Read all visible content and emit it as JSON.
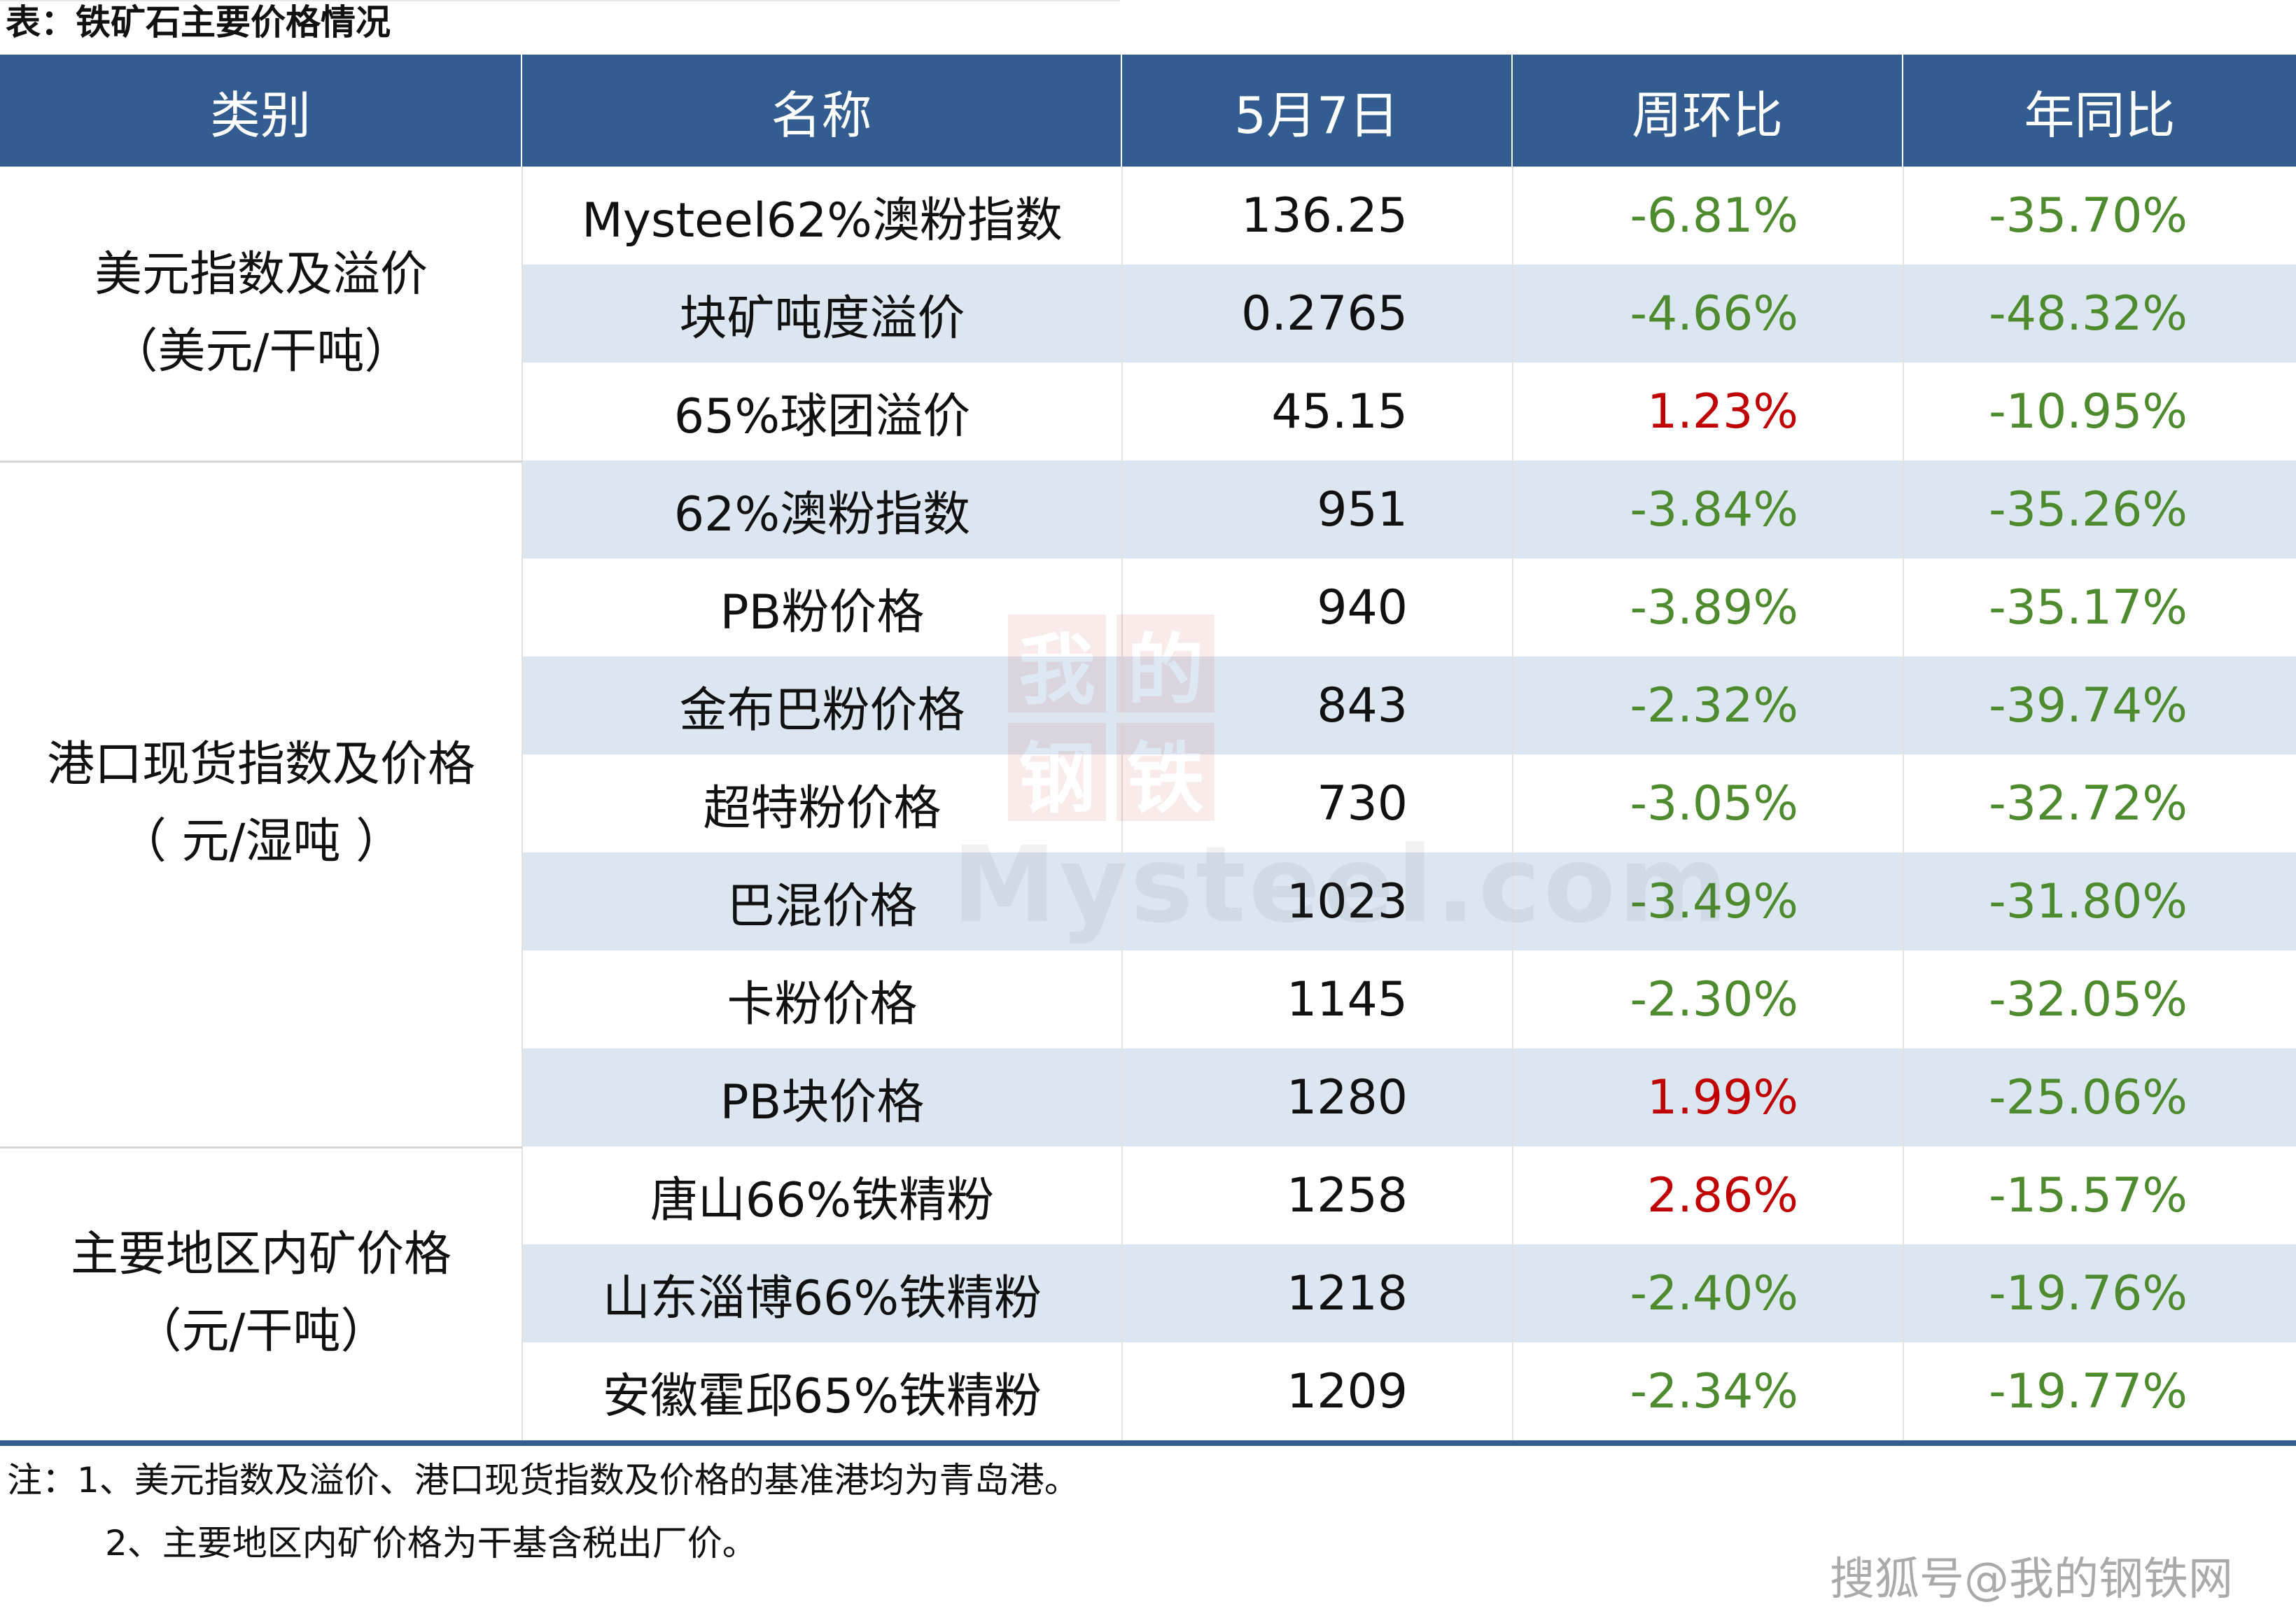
{
  "caption": "表：铁矿石主要价格情况",
  "header": {
    "category": "类别",
    "name": "名称",
    "date": "5月7日",
    "wow": "周环比",
    "yoy": "年同比"
  },
  "groups": [
    {
      "line1": "美元指数及溢价",
      "line2": "（美元/干吨）"
    },
    {
      "line1": "港口现货指数及价格",
      "line2": "（ 元/湿吨 ）"
    },
    {
      "line1": "主要地区内矿价格",
      "line2": "（元/干吨）"
    }
  ],
  "rows": [
    {
      "name": "Mysteel62%澳粉指数",
      "value": "136.25",
      "wow": "-6.81%",
      "yoy": "-35.70%"
    },
    {
      "name": "块矿吨度溢价",
      "value": "0.2765",
      "wow": "-4.66%",
      "yoy": "-48.32%"
    },
    {
      "name": "65%球团溢价",
      "value": "45.15",
      "wow": "1.23%",
      "yoy": "-10.95%"
    },
    {
      "name": "62%澳粉指数",
      "value": "951",
      "wow": "-3.84%",
      "yoy": "-35.26%"
    },
    {
      "name": "PB粉价格",
      "value": "940",
      "wow": "-3.89%",
      "yoy": "-35.17%"
    },
    {
      "name": "金布巴粉价格",
      "value": "843",
      "wow": "-2.32%",
      "yoy": "-39.74%"
    },
    {
      "name": "超特粉价格",
      "value": "730",
      "wow": "-3.05%",
      "yoy": "-32.72%"
    },
    {
      "name": "巴混价格",
      "value": "1023",
      "wow": "-3.49%",
      "yoy": "-31.80%"
    },
    {
      "name": "卡粉价格",
      "value": "1145",
      "wow": "-2.30%",
      "yoy": "-32.05%"
    },
    {
      "name": "PB块价格",
      "value": "1280",
      "wow": "1.99%",
      "yoy": "-25.06%"
    },
    {
      "name": "唐山66%铁精粉",
      "value": "1258",
      "wow": "2.86%",
      "yoy": "-15.57%"
    },
    {
      "name": "山东淄博66%铁精粉",
      "value": "1218",
      "wow": "-2.40%",
      "yoy": "-19.76%"
    },
    {
      "name": "安徽霍邱65%铁精粉",
      "value": "1209",
      "wow": "-2.34%",
      "yoy": "-19.77%"
    }
  ],
  "notes": {
    "note1": "注：1、美元指数及溢价、港口现货指数及价格的基准港均为青岛港。",
    "note2": "2、主要地区内矿价格为干基含税出厂价。"
  },
  "watermark": {
    "logo_chars": "我的钢铁",
    "logo_text": "Mysteel.com",
    "source": "搜狐号@我的钢铁网"
  },
  "colors": {
    "header_bg": "#335d91",
    "stripe": "#dce6f1",
    "negative": "#4e8a2e",
    "positive": "#c00000"
  }
}
